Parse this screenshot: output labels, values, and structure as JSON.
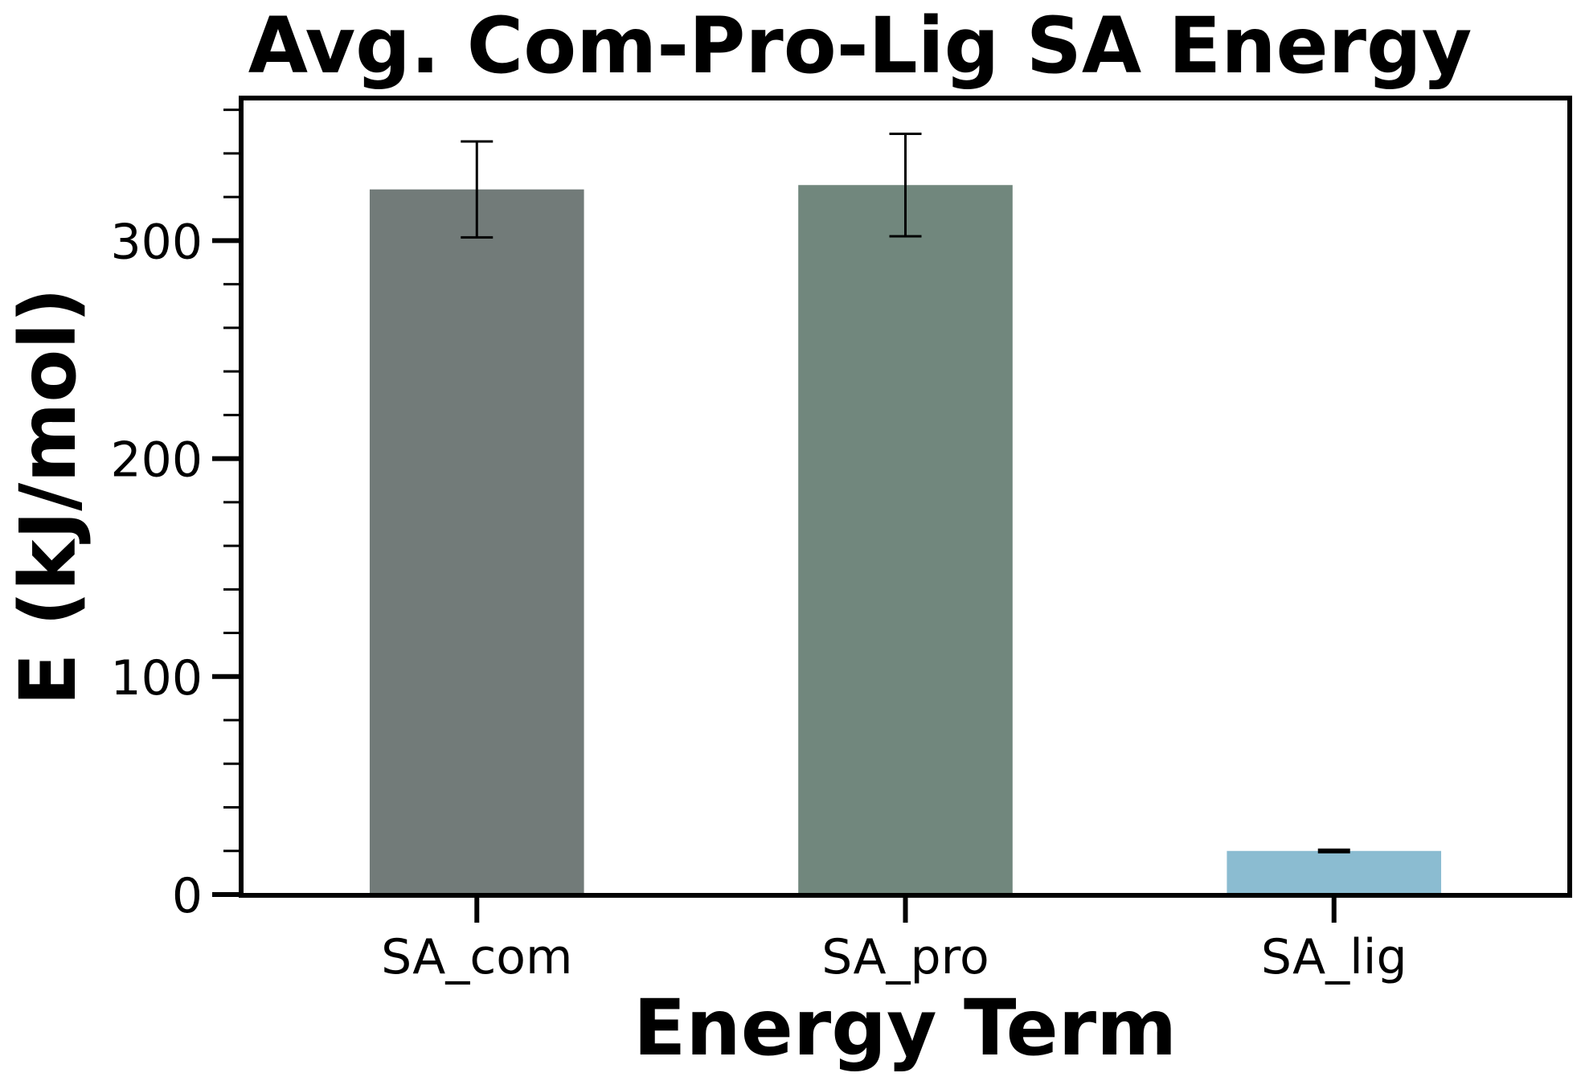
{
  "chart_data": {
    "type": "bar",
    "title": "Avg. Com-Pro-Lig SA Energy",
    "xlabel": "Energy Term",
    "ylabel": "E (kJ/mol)",
    "categories": [
      "SA_com",
      "SA_pro",
      "SA_lig"
    ],
    "values": [
      323.5,
      325.5,
      20.0
    ],
    "error": [
      22.0,
      23.5,
      0.5
    ],
    "colors": [
      "#727b79",
      "#71877d",
      "#8bbcd1"
    ],
    "ylim": [
      0,
      366
    ],
    "yticks_major": [
      "0",
      "100",
      "200",
      "300"
    ],
    "y_minor_step": 20,
    "grid": false,
    "legend": "none"
  }
}
